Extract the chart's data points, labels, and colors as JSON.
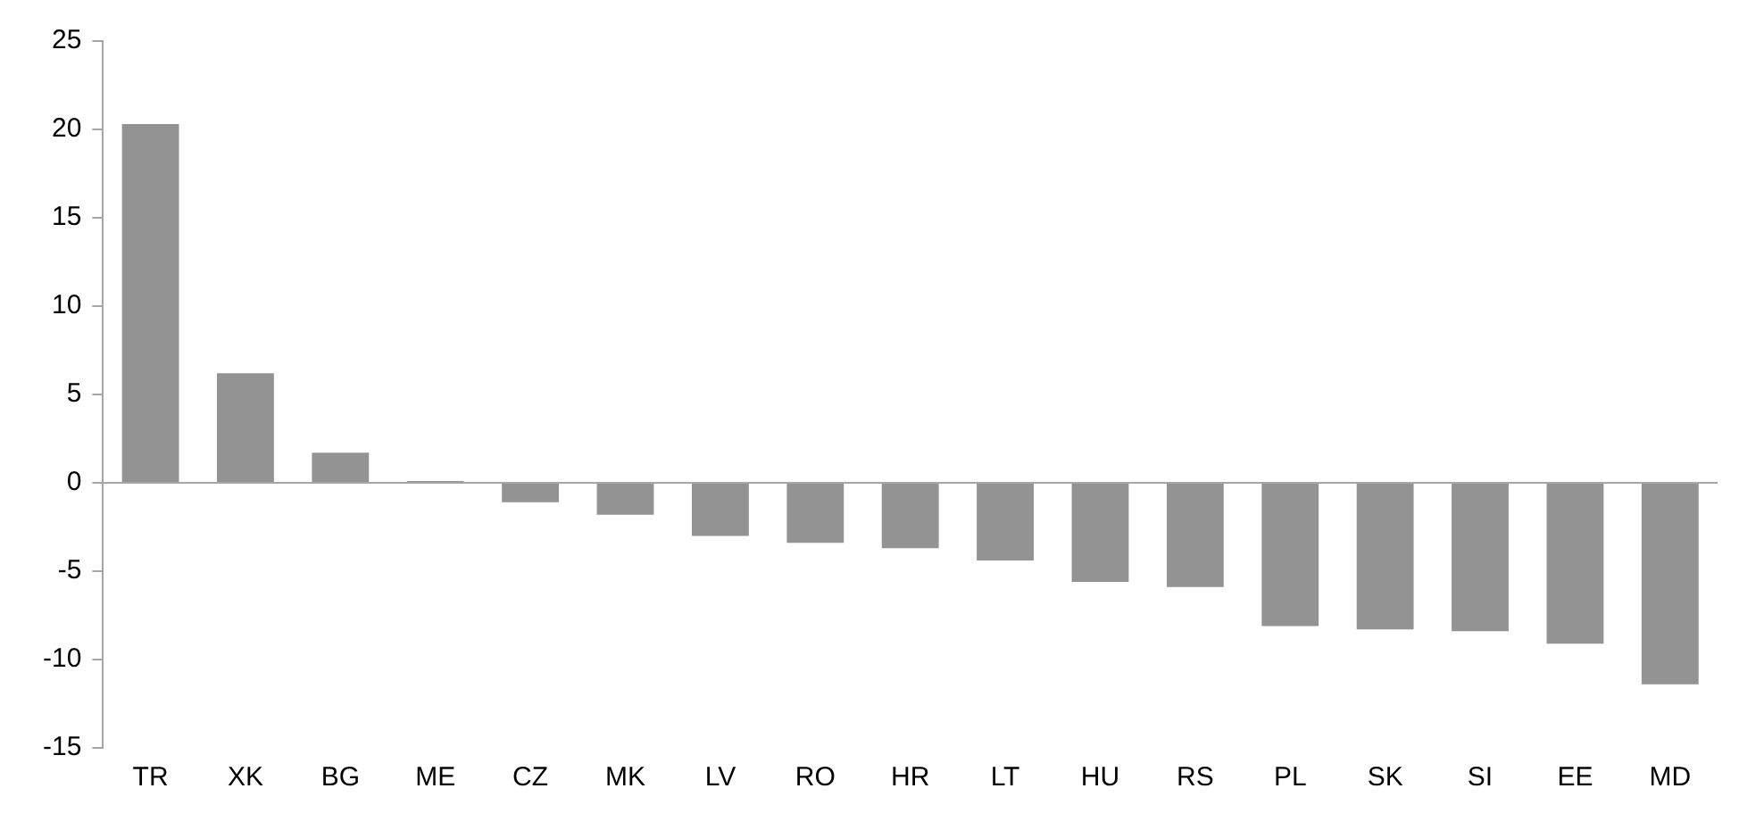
{
  "chart_data": {
    "type": "bar",
    "categories": [
      "TR",
      "XK",
      "BG",
      "ME",
      "CZ",
      "MK",
      "LV",
      "RO",
      "HR",
      "LT",
      "HU",
      "RS",
      "PL",
      "SK",
      "SI",
      "EE",
      "MD"
    ],
    "values": [
      20.3,
      6.2,
      1.7,
      0.1,
      -1.1,
      -1.8,
      -3.0,
      -3.4,
      -3.7,
      -4.4,
      -5.6,
      -5.9,
      -8.1,
      -8.3,
      -8.4,
      -9.1,
      -11.4
    ],
    "color": "#939393",
    "ylim": [
      -15,
      25
    ],
    "yticks": [
      -15,
      -10,
      -5,
      0,
      5,
      10,
      15,
      20,
      25
    ],
    "legend": false
  }
}
